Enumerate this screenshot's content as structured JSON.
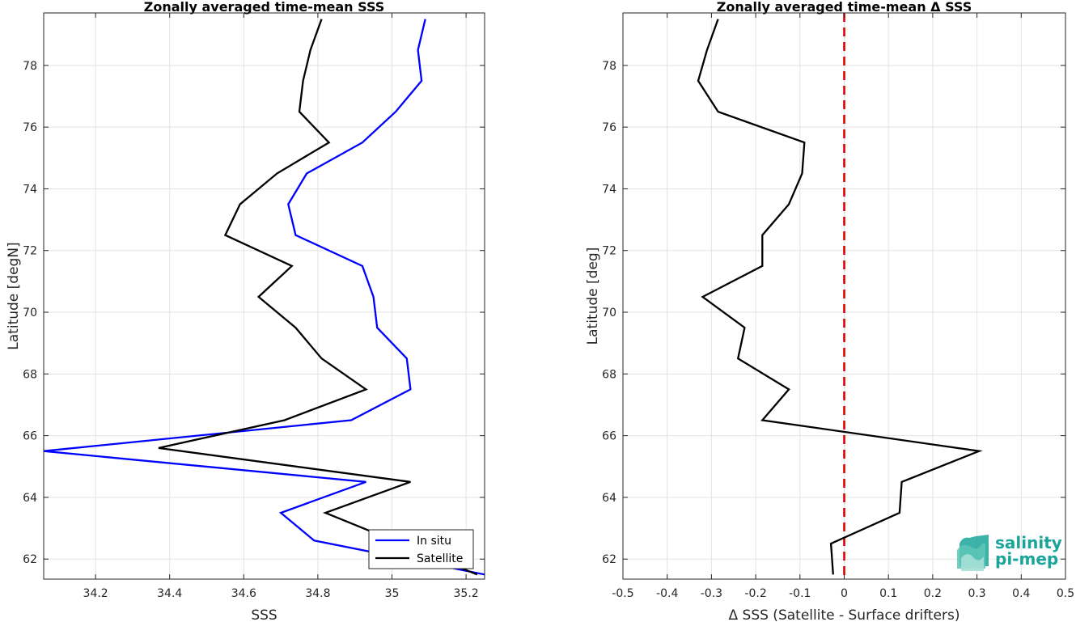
{
  "chart_data": [
    {
      "type": "line",
      "title": "Zonally averaged time-mean SSS",
      "xlabel": "SSS",
      "ylabel": "Latitude [degN]",
      "xlim": [
        34.06,
        35.25
      ],
      "ylim": [
        61.35,
        79.7
      ],
      "xticks": [
        34.2,
        34.4,
        34.6,
        34.8,
        35,
        35.2
      ],
      "xtick_labels": [
        "34.2",
        "34.4",
        "34.6",
        "34.8",
        "35",
        "35.2"
      ],
      "yticks": [
        62,
        64,
        66,
        68,
        70,
        72,
        74,
        76,
        78
      ],
      "ytick_labels": [
        "62",
        "64",
        "66",
        "68",
        "70",
        "72",
        "74",
        "76",
        "78"
      ],
      "grid": true,
      "legend": "bottom-right",
      "series": [
        {
          "name": "In situ",
          "color": "#0000ff",
          "x": [
            35.25,
            34.79,
            34.7,
            34.93,
            34.06,
            34.89,
            35.05,
            35.04,
            34.96,
            34.95,
            34.92,
            34.74,
            34.72,
            34.77,
            34.92,
            35.01,
            35.08,
            35.07,
            35.09
          ],
          "y": [
            61.5,
            62.6,
            63.5,
            64.5,
            65.5,
            66.5,
            67.5,
            68.5,
            69.5,
            70.5,
            71.5,
            72.5,
            73.5,
            74.5,
            75.5,
            76.5,
            77.5,
            78.5,
            79.5
          ]
        },
        {
          "name": "Satellite",
          "color": "#000000",
          "x": [
            35.23,
            34.82,
            35.05,
            34.37,
            34.71,
            34.93,
            34.81,
            34.74,
            34.64,
            34.73,
            34.55,
            34.59,
            34.69,
            34.83,
            34.75,
            34.76,
            34.78,
            34.81
          ],
          "y": [
            61.5,
            63.5,
            64.5,
            65.6,
            66.5,
            67.5,
            68.5,
            69.5,
            70.5,
            71.5,
            72.5,
            73.5,
            74.5,
            75.5,
            76.5,
            77.5,
            78.5,
            79.5
          ]
        }
      ]
    },
    {
      "type": "line",
      "title": "Zonally averaged time-mean Δ SSS",
      "xlabel": "Δ SSS (Satellite - Surface drifters)",
      "ylabel": "Latitude [deg]",
      "xlim": [
        -0.5,
        0.5
      ],
      "ylim": [
        61.35,
        79.7
      ],
      "xticks": [
        -0.5,
        -0.4,
        -0.3,
        -0.2,
        -0.1,
        0,
        0.1,
        0.2,
        0.3,
        0.4,
        0.5
      ],
      "xtick_labels": [
        "-0.5",
        "-0.4",
        "-0.3",
        "-0.2",
        "-0.1",
        "0",
        "0.1",
        "0.2",
        "0.3",
        "0.4",
        "0.5"
      ],
      "yticks": [
        62,
        64,
        66,
        68,
        70,
        72,
        74,
        76,
        78
      ],
      "ytick_labels": [
        "62",
        "64",
        "66",
        "68",
        "70",
        "72",
        "74",
        "76",
        "78"
      ],
      "grid": true,
      "reference_line": {
        "x": 0,
        "color": "#e00000",
        "style": "dashed"
      },
      "series": [
        {
          "color": "#000000",
          "x": [
            -0.025,
            -0.03,
            0.125,
            0.13,
            0.305,
            -0.185,
            -0.125,
            -0.24,
            -0.225,
            -0.32,
            -0.185,
            -0.185,
            -0.125,
            -0.095,
            -0.09,
            -0.285,
            -0.33,
            -0.31,
            -0.285
          ],
          "y": [
            61.5,
            62.5,
            63.5,
            64.5,
            65.5,
            66.5,
            67.5,
            68.5,
            69.5,
            70.5,
            71.5,
            72.5,
            73.5,
            74.5,
            75.5,
            76.5,
            77.5,
            78.5,
            79.5
          ]
        }
      ]
    }
  ],
  "logo": {
    "line1": "salinity",
    "line2": "pi-mep",
    "color": "#1aa59a"
  }
}
